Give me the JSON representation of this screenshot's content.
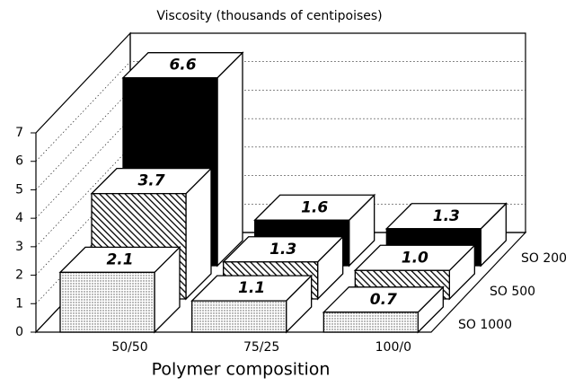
{
  "chart_data": {
    "type": "bar3d",
    "title": "Viscosity (thousands of centipoises)",
    "x_label": "Polymer composition",
    "categories": [
      "50/50",
      "75/25",
      "100/0"
    ],
    "series": [
      {
        "name": "SO 200",
        "pattern": "solid",
        "color": "#000000",
        "values": [
          6.6,
          1.6,
          1.3
        ],
        "value_labels": [
          "6.6",
          "1.6",
          "1.3"
        ]
      },
      {
        "name": "SO 500",
        "pattern": "hatch",
        "color": "#000000",
        "values": [
          3.7,
          1.3,
          1.0
        ],
        "value_labels": [
          "3.7",
          "1.3",
          "1.0"
        ]
      },
      {
        "name": "SO 1000",
        "pattern": "dots",
        "color": "#000000",
        "values": [
          2.1,
          1.1,
          0.7
        ],
        "value_labels": [
          "2.1",
          "1.1",
          "0.7"
        ]
      }
    ],
    "ylim": [
      0,
      7
    ],
    "yticks": [
      0,
      1,
      2,
      3,
      4,
      5,
      6,
      7
    ],
    "grid": true
  }
}
